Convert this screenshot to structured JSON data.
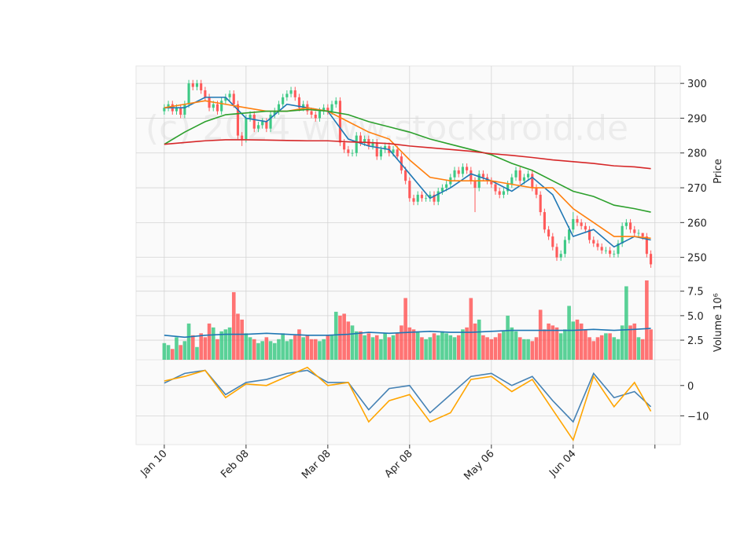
{
  "chart_data": [
    {
      "type": "candlestick",
      "watermark": "(c) 2024 www.stockdroid.de",
      "ylabel": "Price",
      "ylim": [
        244.5,
        305
      ],
      "yticks": [
        250,
        260,
        270,
        280,
        290,
        300
      ],
      "grid": true,
      "up_color": "#3dc985",
      "down_color": "#ff5a5a",
      "open": [
        292,
        293,
        294,
        292,
        293,
        291,
        294,
        300,
        299,
        300,
        298,
        296,
        293,
        294,
        292,
        295,
        296,
        297,
        294,
        285,
        284,
        290,
        291,
        287,
        288,
        289,
        287,
        291,
        292,
        294,
        296,
        297,
        298,
        296,
        293,
        294,
        292,
        291,
        290,
        292,
        293,
        292,
        294,
        295,
        283,
        281,
        280,
        280,
        285,
        283,
        284,
        282,
        283,
        279,
        281,
        282,
        280,
        281,
        279,
        275,
        272,
        267,
        266,
        268,
        267,
        267,
        268,
        266,
        269,
        270,
        271,
        273,
        275,
        274,
        276,
        275,
        272,
        270,
        274,
        273,
        272,
        271,
        269,
        268,
        269,
        271,
        273,
        275,
        272,
        273,
        274,
        270,
        268,
        263,
        258,
        256,
        253,
        250,
        251,
        255,
        258,
        261,
        260,
        259,
        258,
        255,
        254,
        253,
        252,
        252,
        251,
        251,
        254,
        259,
        260,
        258,
        257,
        257,
        256,
        251
      ],
      "high": [
        294,
        295,
        295,
        294,
        294,
        295,
        301,
        301,
        301,
        301,
        299,
        297,
        295,
        295,
        296,
        297,
        298,
        298,
        295,
        286,
        291,
        292,
        292,
        289,
        290,
        290,
        292,
        293,
        295,
        297,
        298,
        299,
        299,
        297,
        295,
        295,
        293,
        292,
        293,
        294,
        294,
        295,
        296,
        296,
        284,
        282,
        281,
        286,
        286,
        285,
        285,
        284,
        284,
        282,
        283,
        283,
        282,
        282,
        280,
        276,
        273,
        268,
        269,
        269,
        268,
        269,
        269,
        270,
        271,
        272,
        274,
        276,
        276,
        277,
        277,
        276,
        273,
        275,
        275,
        274,
        273,
        272,
        270,
        270,
        272,
        274,
        276,
        276,
        274,
        275,
        275,
        271,
        269,
        264,
        259,
        257,
        254,
        252,
        256,
        259,
        263,
        262,
        261,
        260,
        259,
        256,
        255,
        254,
        253,
        253,
        252,
        255,
        260,
        261,
        261,
        259,
        258,
        257,
        257,
        252
      ],
      "low": [
        291,
        292,
        291,
        291,
        290,
        290,
        293,
        298,
        298,
        297,
        295,
        292,
        292,
        291,
        291,
        294,
        295,
        293,
        284,
        282,
        283,
        289,
        286,
        286,
        287,
        286,
        286,
        290,
        291,
        293,
        295,
        296,
        295,
        292,
        292,
        291,
        290,
        289,
        289,
        291,
        291,
        291,
        293,
        282,
        280,
        279,
        279,
        279,
        282,
        282,
        281,
        281,
        278,
        278,
        280,
        279,
        279,
        278,
        274,
        271,
        266,
        265,
        265,
        266,
        266,
        266,
        265,
        265,
        268,
        269,
        270,
        272,
        273,
        273,
        274,
        271,
        263,
        269,
        272,
        271,
        270,
        268,
        267,
        267,
        268,
        270,
        272,
        271,
        271,
        272,
        269,
        267,
        262,
        257,
        255,
        252,
        249,
        249,
        250,
        254,
        257,
        259,
        258,
        257,
        254,
        253,
        252,
        251,
        251,
        250,
        250,
        250,
        253,
        258,
        257,
        256,
        256,
        255,
        250,
        247
      ],
      "close": [
        293,
        294,
        292,
        293,
        291,
        294,
        300,
        299,
        300,
        298,
        296,
        293,
        294,
        292,
        295,
        296,
        297,
        294,
        285,
        284,
        290,
        291,
        287,
        288,
        289,
        287,
        291,
        292,
        294,
        296,
        297,
        298,
        296,
        293,
        294,
        292,
        291,
        290,
        292,
        293,
        292,
        294,
        295,
        283,
        281,
        280,
        280,
        285,
        283,
        284,
        282,
        283,
        279,
        281,
        282,
        280,
        281,
        279,
        275,
        272,
        267,
        266,
        268,
        267,
        267,
        268,
        266,
        269,
        270,
        271,
        273,
        275,
        274,
        276,
        275,
        272,
        270,
        274,
        273,
        272,
        271,
        269,
        268,
        269,
        271,
        273,
        275,
        272,
        273,
        274,
        270,
        268,
        263,
        258,
        256,
        253,
        250,
        251,
        255,
        258,
        261,
        260,
        259,
        258,
        255,
        254,
        253,
        252,
        252,
        251,
        251,
        254,
        259,
        260,
        258,
        257,
        257,
        256,
        251,
        248
      ],
      "lines": [
        {
          "color": "#1f77b4",
          "x": [
            0,
            5,
            10,
            15,
            20,
            25,
            30,
            35,
            40,
            45,
            50,
            55,
            60,
            65,
            70,
            75,
            80,
            85,
            90,
            95,
            100,
            105,
            110,
            115,
            119
          ],
          "values": [
            293,
            293,
            296,
            296,
            290,
            289,
            294,
            293,
            292,
            284,
            282,
            281,
            274,
            267,
            270,
            274,
            272,
            269,
            273,
            268,
            256,
            258,
            253,
            256,
            255
          ]
        },
        {
          "color": "#ff7f0e",
          "x": [
            0,
            5,
            10,
            15,
            20,
            25,
            30,
            35,
            40,
            45,
            50,
            55,
            60,
            65,
            70,
            75,
            80,
            85,
            90,
            95,
            100,
            105,
            110,
            115,
            119
          ],
          "values": [
            293,
            294,
            295,
            294,
            293,
            292,
            292,
            293,
            292,
            289,
            286,
            284,
            278,
            273,
            272,
            272,
            272,
            271,
            270,
            270,
            264,
            260,
            256,
            256,
            255.5
          ]
        },
        {
          "color": "#2ca02c",
          "x": [
            0,
            5,
            10,
            15,
            20,
            25,
            30,
            35,
            40,
            45,
            50,
            55,
            60,
            65,
            70,
            75,
            80,
            85,
            90,
            95,
            100,
            105,
            110,
            115,
            119
          ],
          "values": [
            282.5,
            286,
            289,
            291,
            291.5,
            292,
            292,
            292.5,
            292,
            291,
            289,
            287.5,
            286,
            284,
            282.5,
            281,
            279.5,
            277,
            275,
            272,
            269,
            267.5,
            265,
            264,
            263
          ]
        },
        {
          "color": "#d62728",
          "x": [
            0,
            5,
            10,
            15,
            20,
            25,
            30,
            35,
            40,
            45,
            50,
            55,
            60,
            65,
            70,
            75,
            80,
            85,
            90,
            95,
            100,
            105,
            110,
            115,
            119
          ],
          "values": [
            282.5,
            283,
            283.5,
            283.8,
            283.8,
            283.7,
            283.6,
            283.5,
            283.5,
            283.2,
            283,
            282.7,
            282,
            281.5,
            281,
            280.5,
            279.8,
            279.3,
            278.7,
            278,
            277.5,
            277,
            276.3,
            276,
            275.5
          ]
        }
      ]
    },
    {
      "type": "volume",
      "ylabel": "Volume",
      "offset_label": "10⁶",
      "ylim": [
        0.5,
        9.0
      ],
      "yticks": [
        2.5,
        {
          "value": 5,
          "label": "5.0"
        },
        7.5
      ],
      "grid": true,
      "values": [
        2.2,
        2.0,
        1.6,
        2.8,
        2.0,
        2.4,
        4.2,
        3.0,
        1.8,
        3.2,
        2.8,
        4.2,
        3.8,
        2.6,
        3.4,
        3.6,
        3.8,
        7.4,
        5.2,
        4.6,
        3.2,
        2.8,
        2.6,
        2.2,
        2.4,
        2.8,
        2.4,
        2.2,
        2.6,
        3.2,
        2.4,
        2.6,
        3.0,
        3.6,
        2.8,
        3.0,
        2.6,
        2.6,
        2.4,
        2.6,
        3.0,
        3.0,
        5.4,
        5.0,
        5.2,
        4.4,
        4.0,
        3.4,
        3.4,
        3.0,
        3.2,
        2.8,
        3.0,
        2.6,
        3.2,
        2.8,
        3.0,
        3.2,
        4.0,
        6.8,
        3.8,
        3.6,
        3.4,
        2.8,
        2.6,
        2.8,
        3.2,
        3.0,
        3.4,
        3.2,
        3.0,
        2.8,
        3.0,
        3.6,
        3.8,
        6.8,
        4.2,
        4.6,
        3.0,
        2.8,
        2.6,
        2.8,
        3.2,
        3.4,
        5.0,
        3.8,
        3.4,
        2.8,
        2.6,
        2.6,
        2.4,
        2.8,
        5.6,
        3.6,
        4.2,
        4.0,
        3.8,
        3.2,
        3.6,
        6.0,
        4.4,
        4.6,
        4.2,
        3.6,
        2.8,
        2.4,
        2.8,
        3.0,
        3.2,
        3.2,
        2.8,
        2.6,
        4.0,
        8.0,
        4.0,
        4.2,
        2.8,
        2.6,
        8.6,
        3.6
      ],
      "lines": [
        {
          "color": "#1f77b4",
          "x": [
            0,
            5,
            10,
            15,
            20,
            25,
            30,
            35,
            40,
            45,
            50,
            55,
            60,
            65,
            70,
            75,
            80,
            85,
            90,
            95,
            100,
            105,
            110,
            115,
            119
          ],
          "values": [
            3.0,
            2.8,
            3.0,
            3.1,
            3.1,
            3.2,
            3.1,
            3.0,
            3.0,
            3.1,
            3.3,
            3.2,
            3.3,
            3.4,
            3.3,
            3.3,
            3.4,
            3.5,
            3.5,
            3.5,
            3.5,
            3.6,
            3.5,
            3.6,
            3.7
          ]
        }
      ]
    },
    {
      "type": "line",
      "ylim": [
        -19.5,
        8.5
      ],
      "yticks": [
        0,
        {
          "value": -10,
          "label": "−10"
        }
      ],
      "grid": true,
      "xlim": [
        -6.9,
        126.2
      ],
      "xticks": [
        {
          "value": 0,
          "label": "Jan 10"
        },
        {
          "value": 20,
          "label": "Feb 08"
        },
        {
          "value": 40,
          "label": "Mar 08"
        },
        {
          "value": 60,
          "label": "Apr 08"
        },
        {
          "value": 80,
          "label": "May 06"
        },
        {
          "value": 100,
          "label": "Jun 04"
        },
        {
          "value": 120
        }
      ],
      "lines": [
        {
          "color": "#4682b4",
          "x": [
            0,
            5,
            10,
            15,
            20,
            25,
            30,
            35,
            40,
            45,
            50,
            55,
            60,
            65,
            70,
            75,
            80,
            85,
            90,
            95,
            100,
            105,
            110,
            115,
            119
          ],
          "values": [
            0.8,
            4,
            5,
            -3,
            1,
            2,
            4,
            5,
            1,
            1,
            -8,
            -1,
            0,
            -9,
            -3,
            3,
            4,
            0,
            3,
            -5,
            -12,
            4,
            -4,
            -2,
            -7
          ]
        },
        {
          "color": "#ffa500",
          "x": [
            0,
            5,
            10,
            15,
            20,
            25,
            30,
            35,
            40,
            45,
            50,
            55,
            60,
            65,
            70,
            75,
            80,
            85,
            90,
            95,
            100,
            105,
            110,
            115,
            119
          ],
          "values": [
            1.5,
            3,
            5,
            -4,
            0.5,
            0,
            3,
            6,
            0,
            1,
            -12,
            -5,
            -3,
            -12,
            -9,
            2,
            3,
            -2,
            2,
            -8,
            -18,
            3,
            -7,
            1,
            -8.5
          ]
        }
      ]
    }
  ]
}
